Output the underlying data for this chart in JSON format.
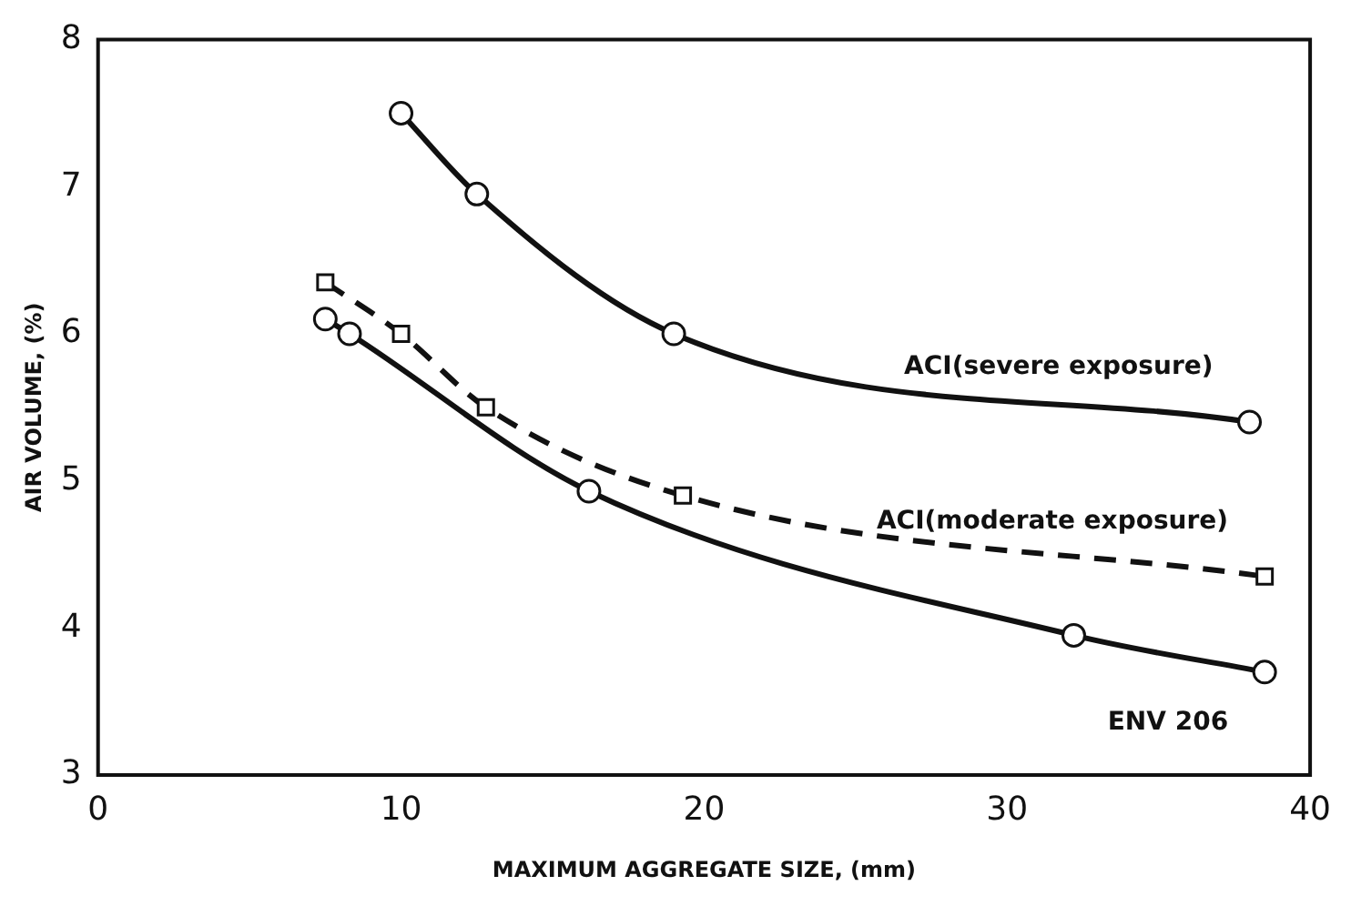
{
  "chart_data": {
    "type": "line",
    "xlabel": "MAXIMUM AGGREGATE SIZE, (mm)",
    "ylabel": "AIR VOLUME, (%)",
    "xlim": [
      0,
      40
    ],
    "xticks": [
      0,
      10,
      20,
      30,
      40
    ],
    "ylim": [
      3,
      8
    ],
    "yticks": [
      3,
      4,
      5,
      6,
      7,
      8
    ],
    "grid": false,
    "legend": false,
    "series": [
      {
        "name": "ACI(severe exposure)",
        "color": "#111111",
        "marker": "circle",
        "line_style": "solid",
        "x": [
          10,
          12.5,
          19,
          38
        ],
        "values": [
          7.5,
          6.95,
          6.0,
          5.4
        ]
      },
      {
        "name": "ACI(moderate exposure)",
        "color": "#111111",
        "marker": "square",
        "line_style": "dashed",
        "x": [
          7.5,
          10,
          12.8,
          19.3,
          38.5
        ],
        "values": [
          6.35,
          6.0,
          5.5,
          4.9,
          4.35
        ]
      },
      {
        "name": "ENV 206",
        "color": "#111111",
        "marker": "circle",
        "line_style": "solid",
        "x": [
          7.5,
          8.3,
          16.2,
          32.2,
          38.5
        ],
        "values": [
          6.1,
          6.0,
          4.93,
          3.95,
          3.7
        ]
      }
    ]
  }
}
